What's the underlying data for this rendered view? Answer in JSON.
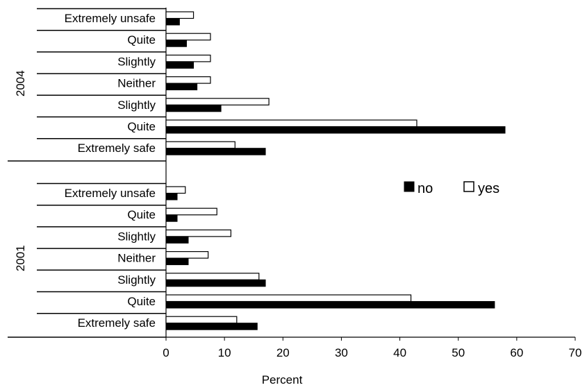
{
  "chart_data": {
    "type": "bar",
    "orientation": "horizontal",
    "xlabel": "Percent",
    "xlim": [
      0,
      70
    ],
    "xticks": [
      0,
      10,
      20,
      30,
      40,
      50,
      60,
      70
    ],
    "grid": false,
    "legend_position": "right-middle",
    "series": [
      {
        "name": "no",
        "color": "#000000"
      },
      {
        "name": "yes",
        "color": "#ffffff"
      }
    ],
    "groups": [
      {
        "label": "2004",
        "categories": [
          "Extremely unsafe",
          "Quite",
          "Slightly",
          "Neither",
          "Slightly",
          "Quite",
          "Extremely safe"
        ],
        "no": [
          2.3,
          3.5,
          4.7,
          5.3,
          9.4,
          58.0,
          17.0
        ],
        "yes": [
          4.7,
          7.6,
          7.6,
          7.6,
          17.6,
          42.9,
          11.8
        ]
      },
      {
        "label": "2001",
        "categories": [
          "Extremely unsafe",
          "Quite",
          "Slightly",
          "Neither",
          "Slightly",
          "Quite",
          "Extremely safe"
        ],
        "no": [
          1.9,
          1.9,
          3.8,
          3.8,
          17.0,
          56.2,
          15.6
        ],
        "yes": [
          3.3,
          8.7,
          11.1,
          7.2,
          15.9,
          41.9,
          12.1
        ]
      }
    ]
  }
}
